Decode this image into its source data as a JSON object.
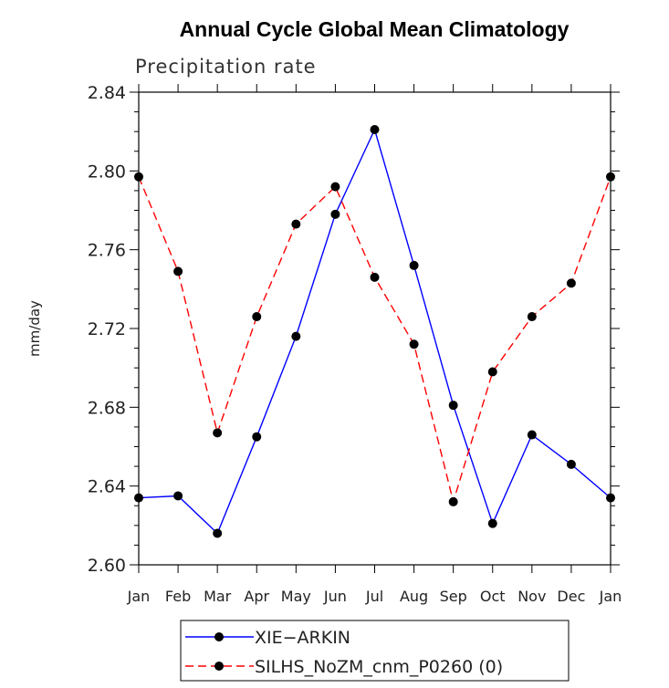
{
  "chart_data": {
    "type": "line",
    "title": "Annual Cycle Global Mean Climatology",
    "subtitle": "Precipitation rate",
    "xlabel": "",
    "ylabel": "mm/day",
    "categories": [
      "Jan",
      "Feb",
      "Mar",
      "Apr",
      "May",
      "Jun",
      "Jul",
      "Aug",
      "Sep",
      "Oct",
      "Nov",
      "Dec",
      "Jan"
    ],
    "ylim": [
      2.6,
      2.84
    ],
    "yticks": [
      "2.60",
      "2.64",
      "2.68",
      "2.72",
      "2.76",
      "2.80",
      "2.84"
    ],
    "series": [
      {
        "name": "XIE−ARKIN",
        "color": "#0000ff",
        "dash": "solid",
        "values": [
          2.634,
          2.635,
          2.616,
          2.665,
          2.716,
          2.778,
          2.821,
          2.752,
          2.681,
          2.621,
          2.666,
          2.651,
          2.634
        ]
      },
      {
        "name": "SILHS_NoZM_cnm_P0260 (0)",
        "color": "#ff0000",
        "dash": "dashed",
        "values": [
          2.797,
          2.749,
          2.667,
          2.726,
          2.773,
          2.792,
          2.746,
          2.712,
          2.632,
          2.698,
          2.726,
          2.743,
          2.797
        ]
      }
    ],
    "marker_color": "#000000",
    "legend_position": "bottom-center"
  }
}
